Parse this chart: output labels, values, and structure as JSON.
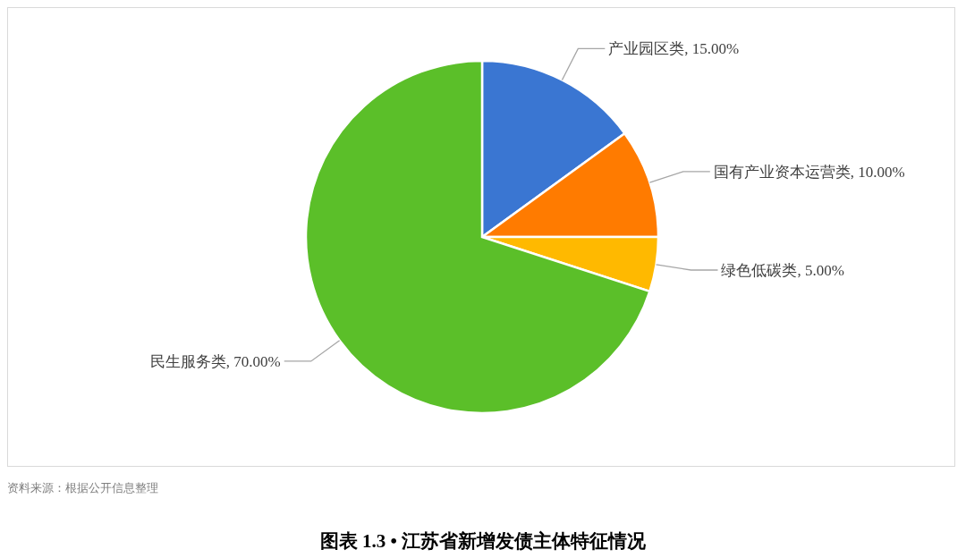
{
  "chart_data": {
    "type": "pie",
    "title": "图表 1.3 • 江苏省新增发债主体特征情况",
    "categories": [
      "产业园区类",
      "国有产业资本运营类",
      "绿色低碳类",
      "民生服务类"
    ],
    "values": [
      15,
      10,
      5,
      70
    ],
    "value_labels": [
      "15.00%",
      "10.00%",
      "5.00%",
      "70.00%"
    ],
    "colors": [
      "#3a76d2",
      "#ff7b00",
      "#ffb900",
      "#5bbf29"
    ],
    "annotations": [
      "资料来源：根据公开信息整理"
    ]
  }
}
